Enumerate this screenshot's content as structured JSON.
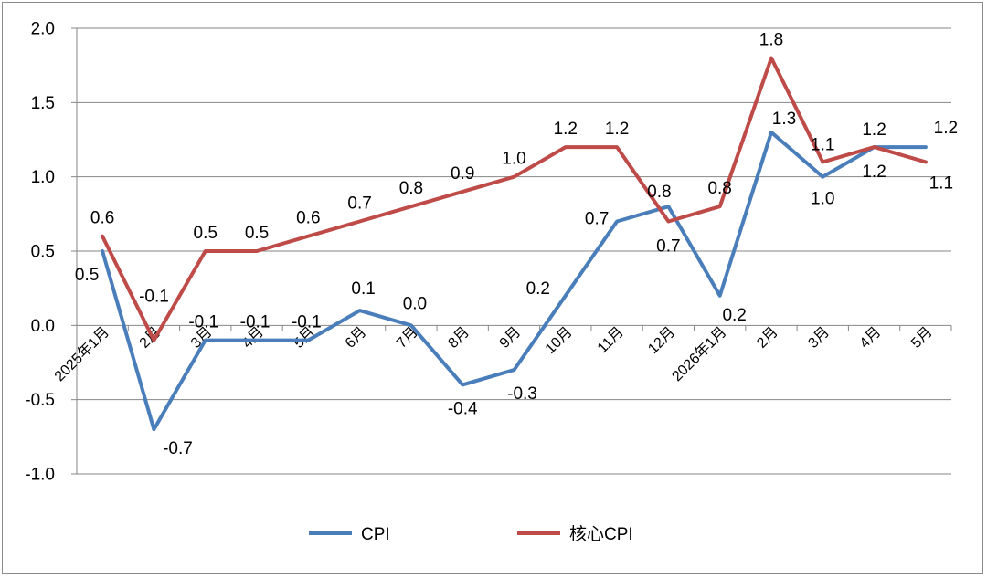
{
  "chart_data": {
    "type": "line",
    "categories": [
      "2025年1月",
      "2月",
      "3月",
      "4月",
      "5月",
      "6月",
      "7月",
      "8月",
      "9月",
      "10月",
      "11月",
      "12月",
      "2026年1月",
      "2月",
      "3月",
      "4月",
      "5月"
    ],
    "series": [
      {
        "name": "CPI",
        "color": "#4a7ebb",
        "values": [
          0.5,
          -0.7,
          -0.1,
          -0.1,
          -0.1,
          0.1,
          0.0,
          -0.4,
          -0.3,
          0.2,
          0.7,
          0.8,
          0.2,
          1.3,
          1.0,
          1.2,
          1.2
        ],
        "labels": [
          "0.5",
          "-0.7",
          "-0.1",
          "-0.1",
          "-0.1",
          "0.1",
          "0.0",
          "-0.4",
          "-0.3",
          "0.2",
          "0.7",
          "0.8",
          "0.2",
          "1.3",
          "1.0",
          "1.2",
          "1.2"
        ]
      },
      {
        "name": "核心CPI",
        "color": "#be4b48",
        "values": [
          0.6,
          -0.1,
          0.5,
          0.5,
          0.6,
          0.7,
          0.8,
          0.9,
          1.0,
          1.2,
          1.2,
          0.7,
          0.8,
          1.8,
          1.1,
          1.2,
          1.1
        ],
        "labels": [
          "0.6",
          "-0.1",
          "0.5",
          "0.5",
          "0.6",
          "0.7",
          "0.8",
          "0.9",
          "1.0",
          "1.2",
          "1.2",
          "0.7",
          "0.8",
          "1.8",
          "1.1",
          "1.2",
          "1.1"
        ]
      }
    ],
    "yticks": [
      "2.0",
      "1.5",
      "1.0",
      "0.5",
      "0.0",
      "-0.5",
      "-1.0"
    ],
    "ylim": [
      -1.0,
      2.0
    ],
    "grid": true,
    "legend_position": "bottom"
  }
}
